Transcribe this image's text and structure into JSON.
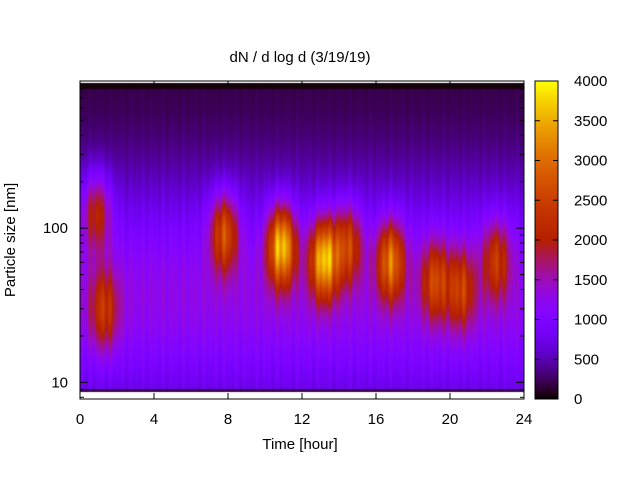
{
  "chart_data": {
    "type": "heatmap",
    "title": "dN / d log d (3/19/19)",
    "xlabel": "Time [hour]",
    "ylabel": "Particle size [nm]",
    "x_range": [
      0,
      24
    ],
    "x_ticks": [
      0,
      4,
      8,
      12,
      16,
      20,
      24
    ],
    "y_scale": "log",
    "y_range": [
      7.8,
      900
    ],
    "y_ticks": [
      10,
      100
    ],
    "colorbar": {
      "range": [
        0,
        4000
      ],
      "ticks": [
        0,
        500,
        1000,
        1500,
        2000,
        2500,
        3000,
        3500,
        4000
      ],
      "colormap": "gnuplot-pm3d",
      "position": "right"
    },
    "grid": false,
    "features": [
      {
        "time_hour": 0.9,
        "size_nm": 120,
        "value": 2100
      },
      {
        "time_hour": 1.3,
        "size_nm": 30,
        "value": 2400
      },
      {
        "time_hour": 7.8,
        "size_nm": 90,
        "value": 2700
      },
      {
        "time_hour": 10.9,
        "size_nm": 75,
        "value": 3700
      },
      {
        "time_hour": 13.2,
        "size_nm": 62,
        "value": 3700
      },
      {
        "time_hour": 14.5,
        "size_nm": 75,
        "value": 2500
      },
      {
        "time_hour": 16.8,
        "size_nm": 60,
        "value": 3100
      },
      {
        "time_hour": 19.2,
        "size_nm": 45,
        "value": 2600
      },
      {
        "time_hour": 20.6,
        "size_nm": 40,
        "value": 2500
      },
      {
        "time_hour": 22.5,
        "size_nm": 60,
        "value": 2400
      }
    ]
  }
}
